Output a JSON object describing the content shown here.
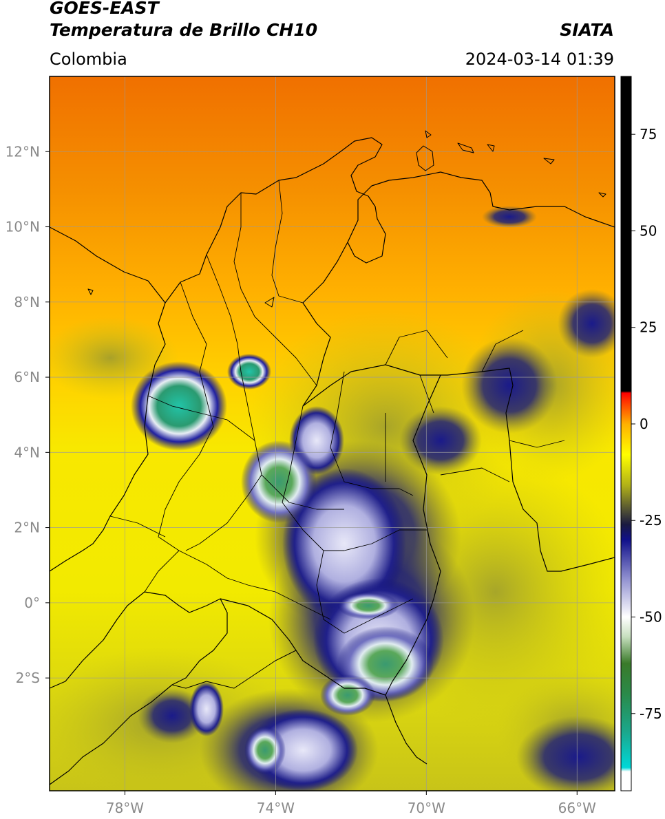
{
  "header": {
    "satellite": "GOES-EAST",
    "product": "Temperatura de Brillo CH10",
    "brand": "SIATA",
    "region": "Colombia",
    "datetime": "2024-03-14 01:39"
  },
  "map": {
    "lon_range": [
      -80,
      -65
    ],
    "lat_range": [
      -5,
      14
    ],
    "lat_ticks": [
      {
        "value": 12,
        "label": "12°N"
      },
      {
        "value": 10,
        "label": "10°N"
      },
      {
        "value": 8,
        "label": "8°N"
      },
      {
        "value": 6,
        "label": "6°N"
      },
      {
        "value": 4,
        "label": "4°N"
      },
      {
        "value": 2,
        "label": "2°N"
      },
      {
        "value": 0,
        "label": "0°"
      },
      {
        "value": -2,
        "label": "2°S"
      }
    ],
    "lon_ticks": [
      {
        "value": -78,
        "label": "78°W"
      },
      {
        "value": -74,
        "label": "74°W"
      },
      {
        "value": -70,
        "label": "70°W"
      },
      {
        "value": -66,
        "label": "66°W"
      }
    ],
    "grid": true
  },
  "colorbar": {
    "range": [
      -95,
      90
    ],
    "ticks": [
      {
        "value": 75,
        "label": "75"
      },
      {
        "value": 50,
        "label": "50"
      },
      {
        "value": 25,
        "label": "25"
      },
      {
        "value": 0,
        "label": "0"
      },
      {
        "value": -25,
        "label": "-25"
      },
      {
        "value": -50,
        "label": "-50"
      },
      {
        "value": -75,
        "label": "-75"
      }
    ],
    "stops": [
      {
        "value": -95,
        "color": "#ffffff"
      },
      {
        "value": -90,
        "color": "#ffffff"
      },
      {
        "value": -89,
        "color": "#00d8d8"
      },
      {
        "value": -80,
        "color": "#1aa88e"
      },
      {
        "value": -70,
        "color": "#2a8a4a"
      },
      {
        "value": -62,
        "color": "#3a7a2a"
      },
      {
        "value": -55,
        "color": "#c8e0c0"
      },
      {
        "value": -50,
        "color": "#ffffff"
      },
      {
        "value": -40,
        "color": "#9090d0"
      },
      {
        "value": -30,
        "color": "#10108a"
      },
      {
        "value": -26,
        "color": "#1a1a40"
      },
      {
        "value": -22,
        "color": "#555533"
      },
      {
        "value": -16,
        "color": "#b0b018"
      },
      {
        "value": -8,
        "color": "#ffff00"
      },
      {
        "value": 0,
        "color": "#ffb000"
      },
      {
        "value": 6,
        "color": "#ff3000"
      },
      {
        "value": 8,
        "color": "#ff0000"
      },
      {
        "value": 8.5,
        "color": "#000000"
      },
      {
        "value": 90,
        "color": "#000000"
      }
    ]
  }
}
